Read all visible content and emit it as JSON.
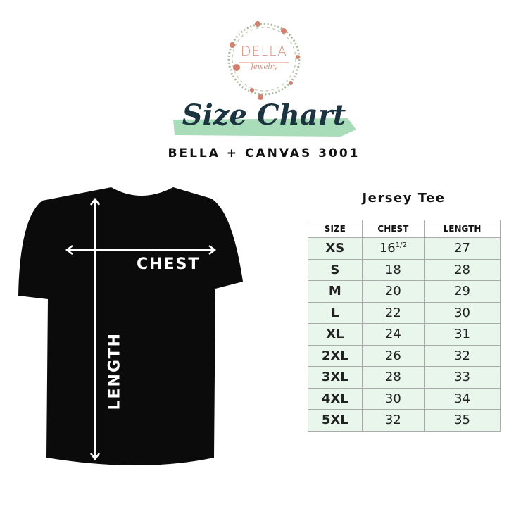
{
  "logo": {
    "name": "DELLA",
    "tagline": "Jewelry"
  },
  "header": {
    "title": "Size Chart",
    "subtitle": "BELLA + CANVAS 3001"
  },
  "shirt": {
    "chest_label": "CHEST",
    "length_label": "LENGTH",
    "color": "#0b0b0b"
  },
  "table": {
    "title": "Jersey Tee",
    "columns": [
      "SIZE",
      "CHEST",
      "LENGTH"
    ],
    "rows": [
      {
        "size": "XS",
        "chest": "16",
        "chest_fraction": "1/2",
        "length": "27"
      },
      {
        "size": "S",
        "chest": "18",
        "length": "28"
      },
      {
        "size": "M",
        "chest": "20",
        "length": "29"
      },
      {
        "size": "L",
        "chest": "22",
        "length": "30"
      },
      {
        "size": "XL",
        "chest": "24",
        "length": "31"
      },
      {
        "size": "2XL",
        "chest": "26",
        "length": "32"
      },
      {
        "size": "3XL",
        "chest": "28",
        "length": "33"
      },
      {
        "size": "4XL",
        "chest": "30",
        "length": "34"
      },
      {
        "size": "5XL",
        "chest": "32",
        "length": "35"
      }
    ],
    "row_color": "#e8f6ec"
  }
}
